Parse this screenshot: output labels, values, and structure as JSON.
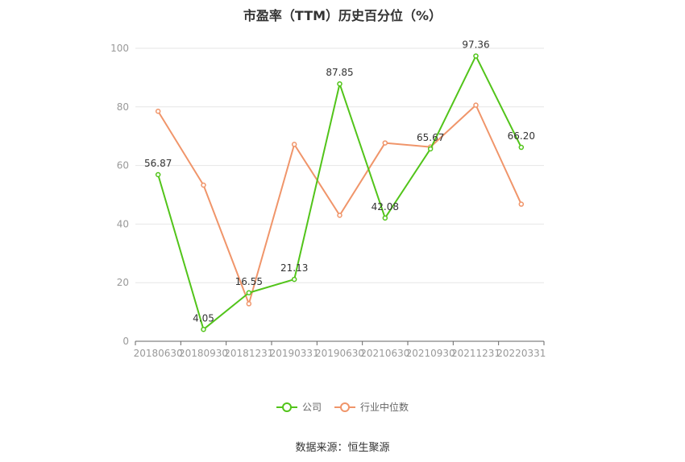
{
  "chart_data": {
    "type": "line",
    "title": "市盈率（TTM）历史百分位（%）",
    "categories": [
      "20180630",
      "20180930",
      "20181231",
      "20190331",
      "20190630",
      "20210630",
      "20210930",
      "20211231",
      "20220331"
    ],
    "series": [
      {
        "name": "公司",
        "color": "#52c41a",
        "values": [
          56.87,
          4.05,
          16.55,
          21.13,
          87.85,
          42.08,
          65.67,
          97.36,
          66.2
        ],
        "labels": [
          "56.87",
          "4.05",
          "16.55",
          "21.13",
          "87.85",
          "42.08",
          "65.67",
          "97.36",
          "66.20"
        ]
      },
      {
        "name": "行业中位数",
        "color": "#f0956a",
        "values": [
          78.5,
          53.3,
          12.8,
          67.2,
          43.0,
          67.7,
          66.3,
          80.6,
          46.8
        ]
      }
    ],
    "ylim": [
      0,
      100
    ],
    "yticks": [
      "0",
      "20",
      "40",
      "60",
      "80",
      "100"
    ],
    "grid": true,
    "legend_position": "bottom"
  },
  "source": "数据来源：恒生聚源"
}
